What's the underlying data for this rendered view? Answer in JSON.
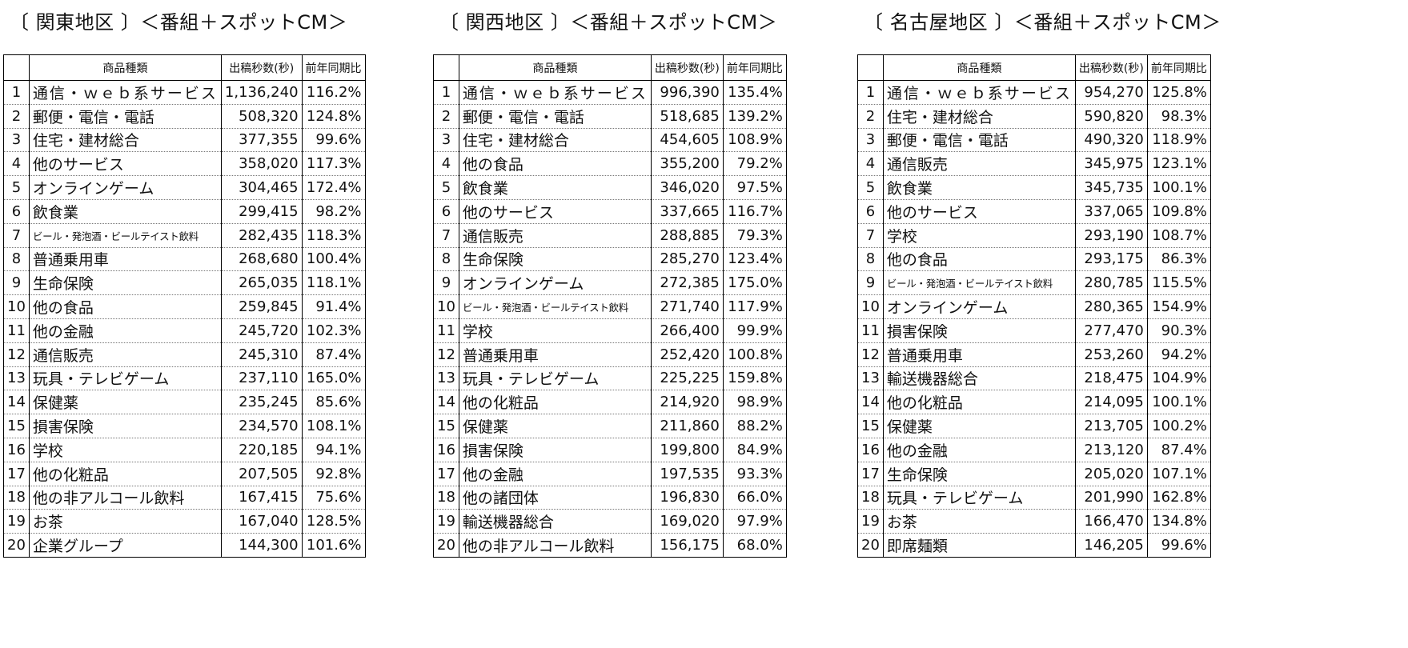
{
  "regions": [
    {
      "title": "〔 関東地区 〕＜番組＋スポットCM＞",
      "headers": [
        "",
        "商品種類",
        "出稿秒数(秒)",
        "前年同期比"
      ],
      "rows": [
        {
          "rank": "1",
          "category": "通信・ｗｅｂ系サービス",
          "seconds": "1,136,240",
          "ratio": "116.2%"
        },
        {
          "rank": "2",
          "category": "郵便・電信・電話",
          "seconds": "508,320",
          "ratio": "124.8%"
        },
        {
          "rank": "3",
          "category": "住宅・建材総合",
          "seconds": "377,355",
          "ratio": "99.6%"
        },
        {
          "rank": "4",
          "category": "他のサービス",
          "seconds": "358,020",
          "ratio": "117.3%"
        },
        {
          "rank": "5",
          "category": "オンラインゲーム",
          "seconds": "304,465",
          "ratio": "172.4%"
        },
        {
          "rank": "6",
          "category": "飲食業",
          "seconds": "299,415",
          "ratio": "98.2%"
        },
        {
          "rank": "7",
          "category": "ビール・発泡酒・ビールテイスト飲料",
          "seconds": "282,435",
          "ratio": "118.3%"
        },
        {
          "rank": "8",
          "category": "普通乗用車",
          "seconds": "268,680",
          "ratio": "100.4%"
        },
        {
          "rank": "9",
          "category": "生命保険",
          "seconds": "265,035",
          "ratio": "118.1%"
        },
        {
          "rank": "10",
          "category": "他の食品",
          "seconds": "259,845",
          "ratio": "91.4%"
        },
        {
          "rank": "11",
          "category": "他の金融",
          "seconds": "245,720",
          "ratio": "102.3%"
        },
        {
          "rank": "12",
          "category": "通信販売",
          "seconds": "245,310",
          "ratio": "87.4%"
        },
        {
          "rank": "13",
          "category": "玩具・テレビゲーム",
          "seconds": "237,110",
          "ratio": "165.0%"
        },
        {
          "rank": "14",
          "category": "保健薬",
          "seconds": "235,245",
          "ratio": "85.6%"
        },
        {
          "rank": "15",
          "category": "損害保険",
          "seconds": "234,570",
          "ratio": "108.1%"
        },
        {
          "rank": "16",
          "category": "学校",
          "seconds": "220,185",
          "ratio": "94.1%"
        },
        {
          "rank": "17",
          "category": "他の化粧品",
          "seconds": "207,505",
          "ratio": "92.8%"
        },
        {
          "rank": "18",
          "category": "他の非アルコール飲料",
          "seconds": "167,415",
          "ratio": "75.6%"
        },
        {
          "rank": "19",
          "category": "お茶",
          "seconds": "167,040",
          "ratio": "128.5%"
        },
        {
          "rank": "20",
          "category": "企業グループ",
          "seconds": "144,300",
          "ratio": "101.6%"
        }
      ]
    },
    {
      "title": "〔 関西地区 〕＜番組＋スポットCM＞",
      "headers": [
        "",
        "商品種類",
        "出稿秒数(秒)",
        "前年同期比"
      ],
      "rows": [
        {
          "rank": "1",
          "category": "通信・ｗｅｂ系サービス",
          "seconds": "996,390",
          "ratio": "135.4%"
        },
        {
          "rank": "2",
          "category": "郵便・電信・電話",
          "seconds": "518,685",
          "ratio": "139.2%"
        },
        {
          "rank": "3",
          "category": "住宅・建材総合",
          "seconds": "454,605",
          "ratio": "108.9%"
        },
        {
          "rank": "4",
          "category": "他の食品",
          "seconds": "355,200",
          "ratio": "79.2%"
        },
        {
          "rank": "5",
          "category": "飲食業",
          "seconds": "346,020",
          "ratio": "97.5%"
        },
        {
          "rank": "6",
          "category": "他のサービス",
          "seconds": "337,665",
          "ratio": "116.7%"
        },
        {
          "rank": "7",
          "category": "通信販売",
          "seconds": "288,885",
          "ratio": "79.3%"
        },
        {
          "rank": "8",
          "category": "生命保険",
          "seconds": "285,270",
          "ratio": "123.4%"
        },
        {
          "rank": "9",
          "category": "オンラインゲーム",
          "seconds": "272,385",
          "ratio": "175.0%"
        },
        {
          "rank": "10",
          "category": "ビール・発泡酒・ビールテイスト飲料",
          "seconds": "271,740",
          "ratio": "117.9%"
        },
        {
          "rank": "11",
          "category": "学校",
          "seconds": "266,400",
          "ratio": "99.9%"
        },
        {
          "rank": "12",
          "category": "普通乗用車",
          "seconds": "252,420",
          "ratio": "100.8%"
        },
        {
          "rank": "13",
          "category": "玩具・テレビゲーム",
          "seconds": "225,225",
          "ratio": "159.8%"
        },
        {
          "rank": "14",
          "category": "他の化粧品",
          "seconds": "214,920",
          "ratio": "98.9%"
        },
        {
          "rank": "15",
          "category": "保健薬",
          "seconds": "211,860",
          "ratio": "88.2%"
        },
        {
          "rank": "16",
          "category": "損害保険",
          "seconds": "199,800",
          "ratio": "84.9%"
        },
        {
          "rank": "17",
          "category": "他の金融",
          "seconds": "197,535",
          "ratio": "93.3%"
        },
        {
          "rank": "18",
          "category": "他の諸団体",
          "seconds": "196,830",
          "ratio": "66.0%"
        },
        {
          "rank": "19",
          "category": "輸送機器総合",
          "seconds": "169,020",
          "ratio": "97.9%"
        },
        {
          "rank": "20",
          "category": "他の非アルコール飲料",
          "seconds": "156,175",
          "ratio": "68.0%"
        }
      ]
    },
    {
      "title": "〔 名古屋地区 〕＜番組＋スポットCM＞",
      "headers": [
        "",
        "商品種類",
        "出稿秒数(秒)",
        "前年同期比"
      ],
      "rows": [
        {
          "rank": "1",
          "category": "通信・ｗｅｂ系サービス",
          "seconds": "954,270",
          "ratio": "125.8%"
        },
        {
          "rank": "2",
          "category": "住宅・建材総合",
          "seconds": "590,820",
          "ratio": "98.3%"
        },
        {
          "rank": "3",
          "category": "郵便・電信・電話",
          "seconds": "490,320",
          "ratio": "118.9%"
        },
        {
          "rank": "4",
          "category": "通信販売",
          "seconds": "345,975",
          "ratio": "123.1%"
        },
        {
          "rank": "5",
          "category": "飲食業",
          "seconds": "345,735",
          "ratio": "100.1%"
        },
        {
          "rank": "6",
          "category": "他のサービス",
          "seconds": "337,065",
          "ratio": "109.8%"
        },
        {
          "rank": "7",
          "category": "学校",
          "seconds": "293,190",
          "ratio": "108.7%"
        },
        {
          "rank": "8",
          "category": "他の食品",
          "seconds": "293,175",
          "ratio": "86.3%"
        },
        {
          "rank": "9",
          "category": "ビール・発泡酒・ビールテイスト飲料",
          "seconds": "280,785",
          "ratio": "115.5%"
        },
        {
          "rank": "10",
          "category": "オンラインゲーム",
          "seconds": "280,365",
          "ratio": "154.9%"
        },
        {
          "rank": "11",
          "category": "損害保険",
          "seconds": "277,470",
          "ratio": "90.3%"
        },
        {
          "rank": "12",
          "category": "普通乗用車",
          "seconds": "253,260",
          "ratio": "94.2%"
        },
        {
          "rank": "13",
          "category": "輸送機器総合",
          "seconds": "218,475",
          "ratio": "104.9%"
        },
        {
          "rank": "14",
          "category": "他の化粧品",
          "seconds": "214,095",
          "ratio": "100.1%"
        },
        {
          "rank": "15",
          "category": "保健薬",
          "seconds": "213,705",
          "ratio": "100.2%"
        },
        {
          "rank": "16",
          "category": "他の金融",
          "seconds": "213,120",
          "ratio": "87.4%"
        },
        {
          "rank": "17",
          "category": "生命保険",
          "seconds": "205,020",
          "ratio": "107.1%"
        },
        {
          "rank": "18",
          "category": "玩具・テレビゲーム",
          "seconds": "201,990",
          "ratio": "162.8%"
        },
        {
          "rank": "19",
          "category": "お茶",
          "seconds": "166,470",
          "ratio": "134.8%"
        },
        {
          "rank": "20",
          "category": "即席麺類",
          "seconds": "146,205",
          "ratio": "99.6%"
        }
      ]
    }
  ]
}
